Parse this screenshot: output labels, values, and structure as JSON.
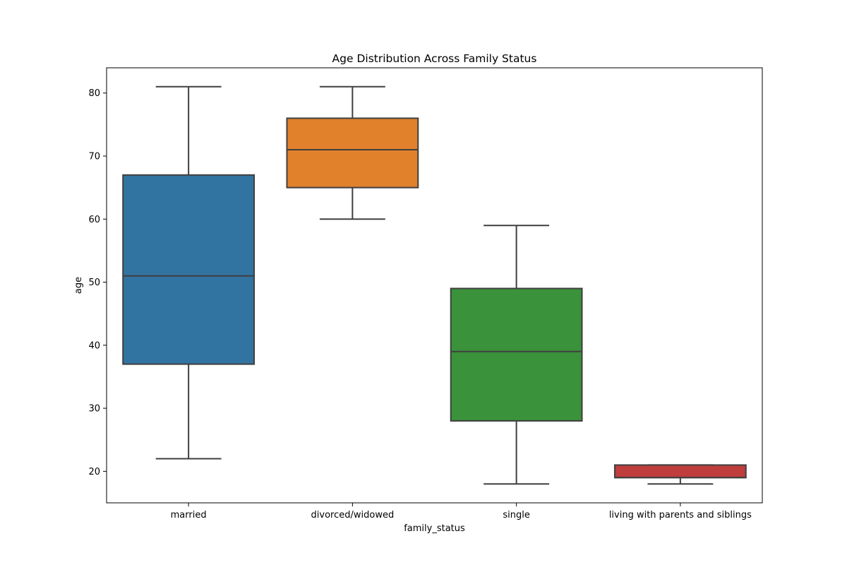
{
  "chart_data": {
    "type": "boxplot",
    "title": "Age Distribution Across Family Status",
    "xlabel": "family_status",
    "ylabel": "age",
    "ylim": [
      15,
      84
    ],
    "yticks": [
      20,
      30,
      40,
      50,
      60,
      70,
      80
    ],
    "grid": false,
    "categories": [
      "married",
      "divorced/widowed",
      "single",
      "living with parents and siblings"
    ],
    "boxes": [
      {
        "category": "married",
        "whisker_low": 22,
        "q1": 37,
        "median": 51,
        "q3": 67,
        "whisker_high": 81,
        "color": "#3274a1"
      },
      {
        "category": "divorced/widowed",
        "whisker_low": 60,
        "q1": 65,
        "median": 71,
        "q3": 76,
        "whisker_high": 81,
        "color": "#e1812c"
      },
      {
        "category": "single",
        "whisker_low": 18,
        "q1": 28,
        "median": 39,
        "q3": 49,
        "whisker_high": 59,
        "color": "#3a923a"
      },
      {
        "category": "living with parents and siblings",
        "whisker_low": 18,
        "q1": 19,
        "median": 19,
        "q3": 21,
        "whisker_high": 21,
        "color": "#c03d3e"
      }
    ],
    "line_color": "#3f3f3f"
  }
}
